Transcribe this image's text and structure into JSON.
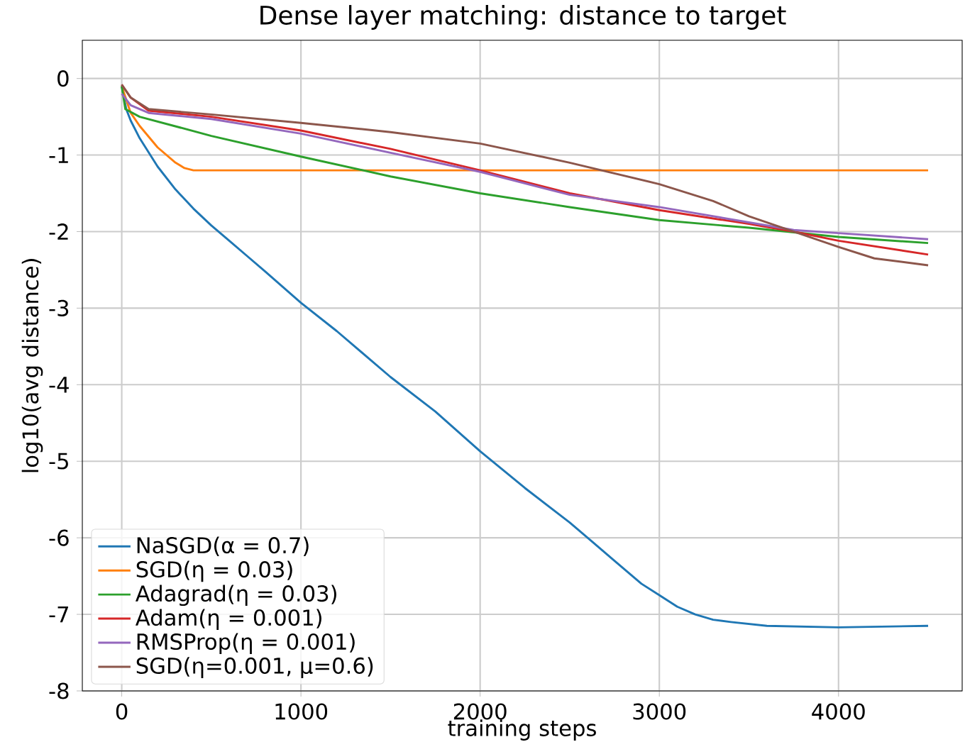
{
  "chart_data": {
    "type": "line",
    "title": "Dense layer matching: distance to target",
    "xlabel": "training steps",
    "ylabel": "log10(avg distance)",
    "xlim": [
      -220,
      4690
    ],
    "ylim": [
      -8,
      0.5
    ],
    "xticks": [
      0,
      1000,
      2000,
      3000,
      4000
    ],
    "yticks": [
      -8,
      -7,
      -6,
      -5,
      -4,
      -3,
      -2,
      -1,
      0
    ],
    "grid": true,
    "legend": "bottom left",
    "line_style": "solid",
    "series": [
      {
        "name": "NaSGD(α = 0.7)",
        "color": "#1f77b4",
        "x": [
          0,
          25,
          50,
          100,
          200,
          300,
          400,
          500,
          600,
          700,
          800,
          1000,
          1200,
          1500,
          1750,
          2000,
          2250,
          2500,
          2750,
          2900,
          3000,
          3100,
          3200,
          3300,
          3400,
          3600,
          4000,
          4500
        ],
        "values": [
          -0.1,
          -0.4,
          -0.55,
          -0.78,
          -1.15,
          -1.45,
          -1.7,
          -1.92,
          -2.12,
          -2.32,
          -2.52,
          -2.93,
          -3.3,
          -3.9,
          -4.35,
          -4.87,
          -5.35,
          -5.8,
          -6.3,
          -6.6,
          -6.75,
          -6.9,
          -7.0,
          -7.07,
          -7.1,
          -7.15,
          -7.17,
          -7.15
        ]
      },
      {
        "name": "SGD(η = 0.03)",
        "color": "#ff7f0e",
        "x": [
          0,
          50,
          100,
          200,
          300,
          350,
          400,
          1000,
          2000,
          3000,
          4000,
          4500
        ],
        "values": [
          -0.1,
          -0.45,
          -0.62,
          -0.9,
          -1.1,
          -1.17,
          -1.2,
          -1.2,
          -1.2,
          -1.2,
          -1.2,
          -1.2
        ]
      },
      {
        "name": "Adagrad(η = 0.03)",
        "color": "#2ca02c",
        "x": [
          0,
          20,
          100,
          500,
          1000,
          1500,
          2000,
          2500,
          3000,
          3500,
          4000,
          4500
        ],
        "values": [
          -0.1,
          -0.4,
          -0.5,
          -0.75,
          -1.02,
          -1.28,
          -1.5,
          -1.68,
          -1.85,
          -1.95,
          -2.07,
          -2.15
        ]
      },
      {
        "name": "Adam(η = 0.001)",
        "color": "#d62728",
        "x": [
          0,
          50,
          150,
          500,
          1000,
          1500,
          2000,
          2500,
          3000,
          3500,
          3750,
          4000,
          4500
        ],
        "values": [
          -0.08,
          -0.25,
          -0.42,
          -0.5,
          -0.68,
          -0.92,
          -1.2,
          -1.5,
          -1.72,
          -1.9,
          -2.0,
          -2.12,
          -2.3
        ]
      },
      {
        "name": "RMSProp(η = 0.001)",
        "color": "#9467bd",
        "x": [
          0,
          50,
          150,
          500,
          1000,
          1500,
          2000,
          2500,
          3000,
          3500,
          3750,
          4000,
          4500
        ],
        "values": [
          -0.2,
          -0.35,
          -0.45,
          -0.53,
          -0.72,
          -0.97,
          -1.22,
          -1.52,
          -1.68,
          -1.88,
          -1.98,
          -2.02,
          -2.1
        ]
      },
      {
        "name": "SGD(η=0.001, μ=0.6)",
        "color": "#8c564b",
        "x": [
          0,
          50,
          150,
          500,
          1000,
          1500,
          2000,
          2500,
          3000,
          3300,
          3500,
          3750,
          4000,
          4200,
          4500
        ],
        "values": [
          -0.08,
          -0.25,
          -0.4,
          -0.47,
          -0.58,
          -0.7,
          -0.85,
          -1.1,
          -1.38,
          -1.6,
          -1.8,
          -2.0,
          -2.2,
          -2.35,
          -2.44
        ]
      }
    ]
  }
}
